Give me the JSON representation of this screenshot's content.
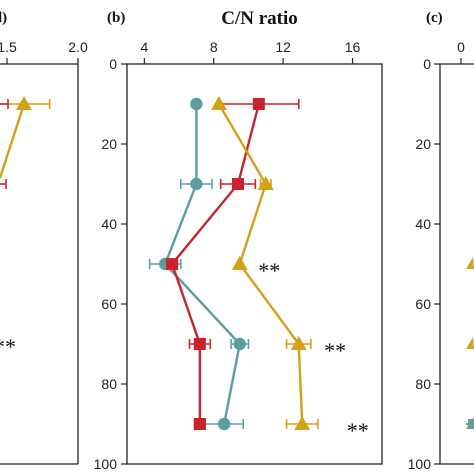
{
  "colors": {
    "red": "#c8232c",
    "teal": "#5b9ea0",
    "gold": "#d4a017",
    "axis": "#222222"
  },
  "chart_data": [
    {
      "panel": "a",
      "type": "line",
      "partial": true,
      "panel_label": "l)",
      "xlabel": "",
      "x_ticks": [
        "1.5",
        "2.0"
      ],
      "xlim_visible": [
        1.05,
        2.0
      ],
      "ylim": [
        0,
        100
      ],
      "y_inverted": true,
      "series": [
        {
          "marker": "square",
          "color": "red",
          "points": [
            {
              "x": 1.0,
              "y": 10
            },
            {
              "x": 1.0,
              "y": 30
            }
          ]
        },
        {
          "marker": "triangle",
          "color": "gold",
          "points": [
            {
              "x": 1.62,
              "y": 10,
              "xerr": 0.18
            },
            {
              "x": 1.0,
              "y": 30
            }
          ]
        }
      ],
      "annotations": [
        {
          "text": "**",
          "y": 70
        }
      ]
    },
    {
      "panel": "b",
      "type": "line",
      "panel_label": "(b)",
      "xlabel": "C/N ratio",
      "xlim": [
        3,
        17.7
      ],
      "x_ticks": [
        "4",
        "8",
        "12",
        "16"
      ],
      "ylim": [
        0,
        100
      ],
      "y_ticks": [
        "0",
        "20",
        "40",
        "60",
        "80",
        "100"
      ],
      "y_inverted": true,
      "series": [
        {
          "marker": "circle",
          "color": "teal",
          "points": [
            {
              "x": 7.0,
              "y": 10,
              "xerr": 0.0
            },
            {
              "x": 7.0,
              "y": 30,
              "xerr": 0.9
            },
            {
              "x": 5.2,
              "y": 50,
              "xerr": 0.9
            },
            {
              "x": 9.5,
              "y": 70,
              "xerr": 0.5
            },
            {
              "x": 8.6,
              "y": 90,
              "xerr": 1.1
            }
          ]
        },
        {
          "marker": "square",
          "color": "red",
          "points": [
            {
              "x": 10.6,
              "y": 10,
              "xerr": 2.3
            },
            {
              "x": 9.4,
              "y": 30,
              "xerr": 1.0
            },
            {
              "x": 5.6,
              "y": 50,
              "xerr": 0.3
            },
            {
              "x": 7.2,
              "y": 70,
              "xerr": 0.6
            },
            {
              "x": 7.2,
              "y": 90,
              "xerr": 0.3
            }
          ]
        },
        {
          "marker": "triangle",
          "color": "gold",
          "points": [
            {
              "x": 8.3,
              "y": 10,
              "xerr": 0.0
            },
            {
              "x": 11.0,
              "y": 30,
              "xerr": 0.3
            },
            {
              "x": 9.5,
              "y": 50,
              "xerr": 0.0
            },
            {
              "x": 12.9,
              "y": 70,
              "xerr": 0.7
            },
            {
              "x": 13.1,
              "y": 90,
              "xerr": 0.9
            }
          ]
        }
      ],
      "annotations": [
        {
          "text": "**",
          "x": 11.2,
          "y": 51
        },
        {
          "text": "**",
          "x": 15.0,
          "y": 71
        },
        {
          "text": "**",
          "x": 16.3,
          "y": 91
        }
      ]
    },
    {
      "panel": "c",
      "type": "line",
      "partial": true,
      "panel_label": "(c)",
      "x_ticks": [
        "0"
      ],
      "ylim": [
        0,
        100
      ],
      "y_ticks": [
        "0",
        "20",
        "40",
        "60",
        "80",
        "100"
      ],
      "y_inverted": true,
      "series": [
        {
          "marker": "triangle",
          "color": "gold",
          "points": [
            {
              "y": 50
            },
            {
              "y": 70
            },
            {
              "y": 90
            }
          ]
        },
        {
          "marker": "square",
          "color": "teal",
          "points": [
            {
              "y": 90
            }
          ]
        }
      ]
    }
  ]
}
